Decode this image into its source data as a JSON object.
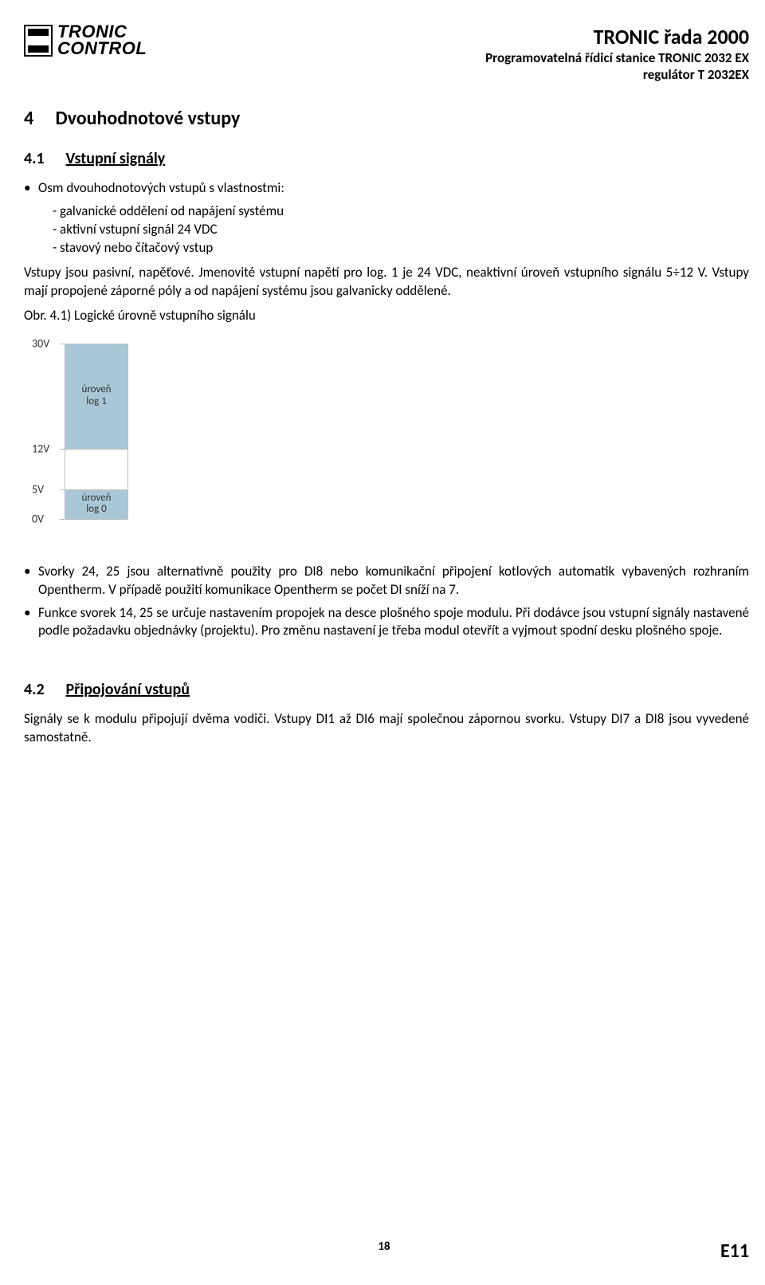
{
  "header": {
    "brand_line1": "TRONIC",
    "brand_line2": "CONTROL",
    "right_line1": "TRONIC řada 2000",
    "right_line2": "Programovatelná řídicí stanice TRONIC 2032 EX",
    "right_line3": "regulátor T 2032EX"
  },
  "section4": {
    "number": "4",
    "title": "Dvouhodnotové vstupy"
  },
  "section41": {
    "number": "4.1",
    "title": "Vstupní signály",
    "lead": "Osm dvouhodnotových vstupů s vlastnostmi:",
    "bullets": [
      "- galvanické oddělení od napájení systému",
      "- aktivní vstupní signál 24 VDC",
      "- stavový nebo čítačový vstup"
    ],
    "para1": "Vstupy jsou pasivní, napěťové. Jmenovité vstupní napětí pro log. 1 je 24 VDC, neaktivní úroveň vstupního signálu 5÷12 V. Vstupy mají propojené záporné póly a od napájení systému jsou galvanicky oddělené.",
    "caption": "Obr. 4.1) Logické úrovně vstupního signálu",
    "para2": "Svorky 24, 25 jsou alternativně použity pro DI8 nebo komunikační připojení kotlových automatik vybavených rozhraním Opentherm. V případě použití komunikace Opentherm se počet DI sníží na 7.",
    "para3": "Funkce svorek 14, 25 se určuje nastavením propojek na desce plošného spoje modulu. Při dodávce jsou vstupní signály nastavené podle požadavku objednávky (projektu). Pro změnu nastavení je třeba modul otevřít a vyjmout spodní desku plošného spoje."
  },
  "section42": {
    "number": "4.2",
    "title": "Připojování vstupů",
    "para": "Signály se k modulu připojují dvěma vodiči. Vstupy DI1 až DI6 mají společnou zápornou svorku. Vstupy DI7 a DI8 jsou vyvedené samostatně."
  },
  "diagram": {
    "y_labels": [
      "30V",
      "12V",
      "5V",
      "0V"
    ],
    "y_positions_pct": [
      0,
      60,
      83.3,
      100
    ],
    "segments": [
      {
        "label": "úroveň\nlog 1",
        "fill": true,
        "flex": 60
      },
      {
        "label": "",
        "fill": false,
        "flex": 23.3
      },
      {
        "label": "úroveň\nlog 0",
        "fill": true,
        "flex": 16.7
      }
    ],
    "fill_color": "#a8c8d8",
    "bg_color": "#ffffff",
    "border_color": "#bbbbbb",
    "font_size": 14
  },
  "footer": {
    "page": "18",
    "code": "E11"
  }
}
